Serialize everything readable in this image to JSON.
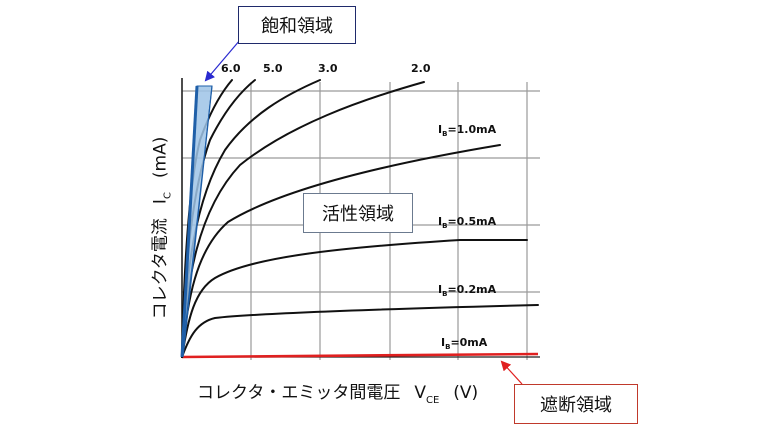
{
  "callouts": {
    "saturation": "飽和領域",
    "active": "活性領域",
    "cutoff": "遮断領域"
  },
  "axes": {
    "y_label_main": "コレクタ電流",
    "y_symbol": "I",
    "y_symbol_sub": "C",
    "y_unit": "(mA)",
    "x_label_main": "コレクタ・エミッタ間電圧",
    "x_symbol": "V",
    "x_symbol_sub": "CE",
    "x_unit": "(V)"
  },
  "curve_labels": {
    "top": [
      "6.0",
      "5.0",
      "3.0",
      "2.0"
    ],
    "right": [
      {
        "prefix": "I",
        "sub": "B",
        "value": "=1.0mA"
      },
      {
        "prefix": "I",
        "sub": "B",
        "value": "=0.5mA"
      },
      {
        "prefix": "I",
        "sub": "B",
        "value": "=0.2mA"
      },
      {
        "prefix": "I",
        "sub": "B",
        "value": "=0mA"
      }
    ]
  },
  "colors": {
    "curve": "#111111",
    "grid": "#9a9a9a",
    "saturation_fill": "#9dc3e6",
    "saturation_edge": "#1f5fa8",
    "cutoff_line": "#e02020",
    "saturation_arrow": "#2a2ad0",
    "cutoff_arrow": "#e02020"
  }
}
